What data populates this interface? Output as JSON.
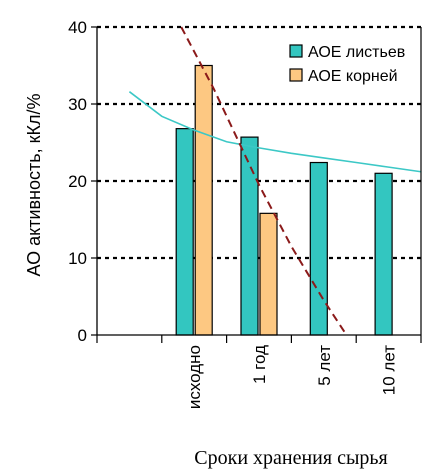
{
  "chart_data": {
    "type": "bar",
    "ylabel": "АО активность, кКл/%",
    "xlabel": "Сроки хранения сырья",
    "categories": [
      "исходно",
      "1 год",
      "5 лет",
      "10 лет"
    ],
    "ylim": [
      0,
      40
    ],
    "yticks": [
      0,
      10,
      20,
      30,
      40
    ],
    "grid": "horizontal dashed",
    "legend_position": "top-right",
    "series": [
      {
        "name": "АОЕ листьев",
        "color": "#33c6c0",
        "values": [
          26.8,
          25.7,
          22.4,
          21.0
        ]
      },
      {
        "name": "АОЕ корней",
        "color": "#fdc882",
        "values": [
          35.0,
          15.8,
          null,
          null
        ]
      }
    ],
    "trendlines": [
      {
        "color": "#3cc8c6",
        "style": "solid",
        "x": [
          -1,
          -0.5,
          0,
          0.5,
          1,
          1.5,
          2,
          2.5,
          3,
          3.5
        ],
        "y": [
          31.6,
          28.4,
          26.6,
          25.1,
          24.3,
          23.6,
          23.0,
          22.4,
          21.8,
          21.2
        ]
      },
      {
        "color": "#8b1a1a",
        "style": "dashed",
        "x": [
          -0.2,
          0.3,
          1,
          1.5,
          2,
          2.35
        ],
        "y": [
          40,
          32,
          19.5,
          11.5,
          4.5,
          0
        ]
      }
    ]
  }
}
